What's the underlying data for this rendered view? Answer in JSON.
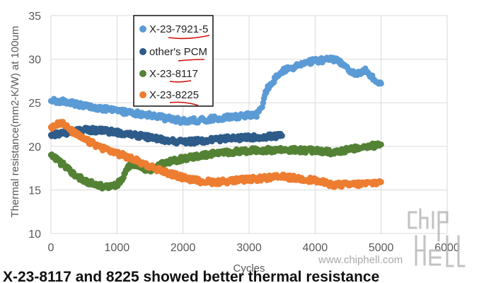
{
  "chart_data": {
    "type": "scatter",
    "title": "",
    "xlabel": "Cycles",
    "ylabel": "Thermal resistance(mm2-K/W) at 100um",
    "xlim": [
      0,
      6000
    ],
    "ylim": [
      10,
      35
    ],
    "x_ticks": [
      "0",
      "1000",
      "2000",
      "3000",
      "4000",
      "5000",
      "6000"
    ],
    "y_ticks": [
      "10",
      "15",
      "20",
      "25",
      "30",
      "35"
    ],
    "grid": "vertical and horizontal",
    "legend_position": "top-left, inside plot, boxed",
    "series": [
      {
        "name": "X-23-7921-5",
        "color": "#5B9BD5",
        "x": [
          0,
          250,
          500,
          750,
          1000,
          1250,
          1500,
          1750,
          2000,
          2250,
          2500,
          2750,
          3000,
          3100,
          3200,
          3250,
          3400,
          3500,
          3750,
          4000,
          4250,
          4400,
          4600,
          4750,
          4900,
          5000
        ],
        "y": [
          25.2,
          25.1,
          24.6,
          24.3,
          24.1,
          23.8,
          23.6,
          23.2,
          22.9,
          23.0,
          23.2,
          23.4,
          23.6,
          23.5,
          24.5,
          26.3,
          27.8,
          28.6,
          29.3,
          29.8,
          30.0,
          29.6,
          28.2,
          28.8,
          27.6,
          27.2
        ]
      },
      {
        "name": "other's PCM",
        "color": "#2E5C8A",
        "x": [
          0,
          250,
          500,
          750,
          1000,
          1250,
          1500,
          1750,
          2000,
          2250,
          2500,
          2750,
          3000,
          3250,
          3500
        ],
        "y": [
          21.3,
          21.6,
          21.9,
          21.8,
          21.6,
          21.3,
          21.0,
          20.7,
          20.5,
          20.6,
          20.8,
          20.9,
          21.0,
          21.1,
          21.2
        ]
      },
      {
        "name": "X-23-8117",
        "color": "#548235",
        "x": [
          0,
          200,
          400,
          600,
          800,
          1000,
          1100,
          1200,
          1300,
          1500,
          1700,
          2000,
          2250,
          2500,
          3000,
          3500,
          4000,
          4250,
          4500,
          4750,
          5000
        ],
        "y": [
          19.0,
          17.8,
          16.5,
          15.8,
          15.3,
          15.6,
          16.4,
          18.0,
          17.8,
          17.2,
          18.0,
          18.6,
          18.9,
          19.2,
          19.5,
          19.6,
          19.5,
          19.3,
          19.6,
          19.9,
          20.2
        ]
      },
      {
        "name": "X-23-8225",
        "color": "#ED7D31",
        "x": [
          0,
          150,
          300,
          500,
          750,
          1000,
          1250,
          1500,
          1750,
          2000,
          2250,
          2500,
          3000,
          3500,
          4000,
          4250,
          4500,
          4750,
          5000
        ],
        "y": [
          22.2,
          22.8,
          21.8,
          20.8,
          19.9,
          19.2,
          18.5,
          17.7,
          17.0,
          16.4,
          16.0,
          15.9,
          16.2,
          16.5,
          16.1,
          15.6,
          15.6,
          15.7,
          15.9
        ]
      }
    ]
  },
  "watermark_url": "www.chiphell.com",
  "watermark_logo": "chip hell",
  "caption": "X-23-8117 and 8225 showed better thermal resistance"
}
